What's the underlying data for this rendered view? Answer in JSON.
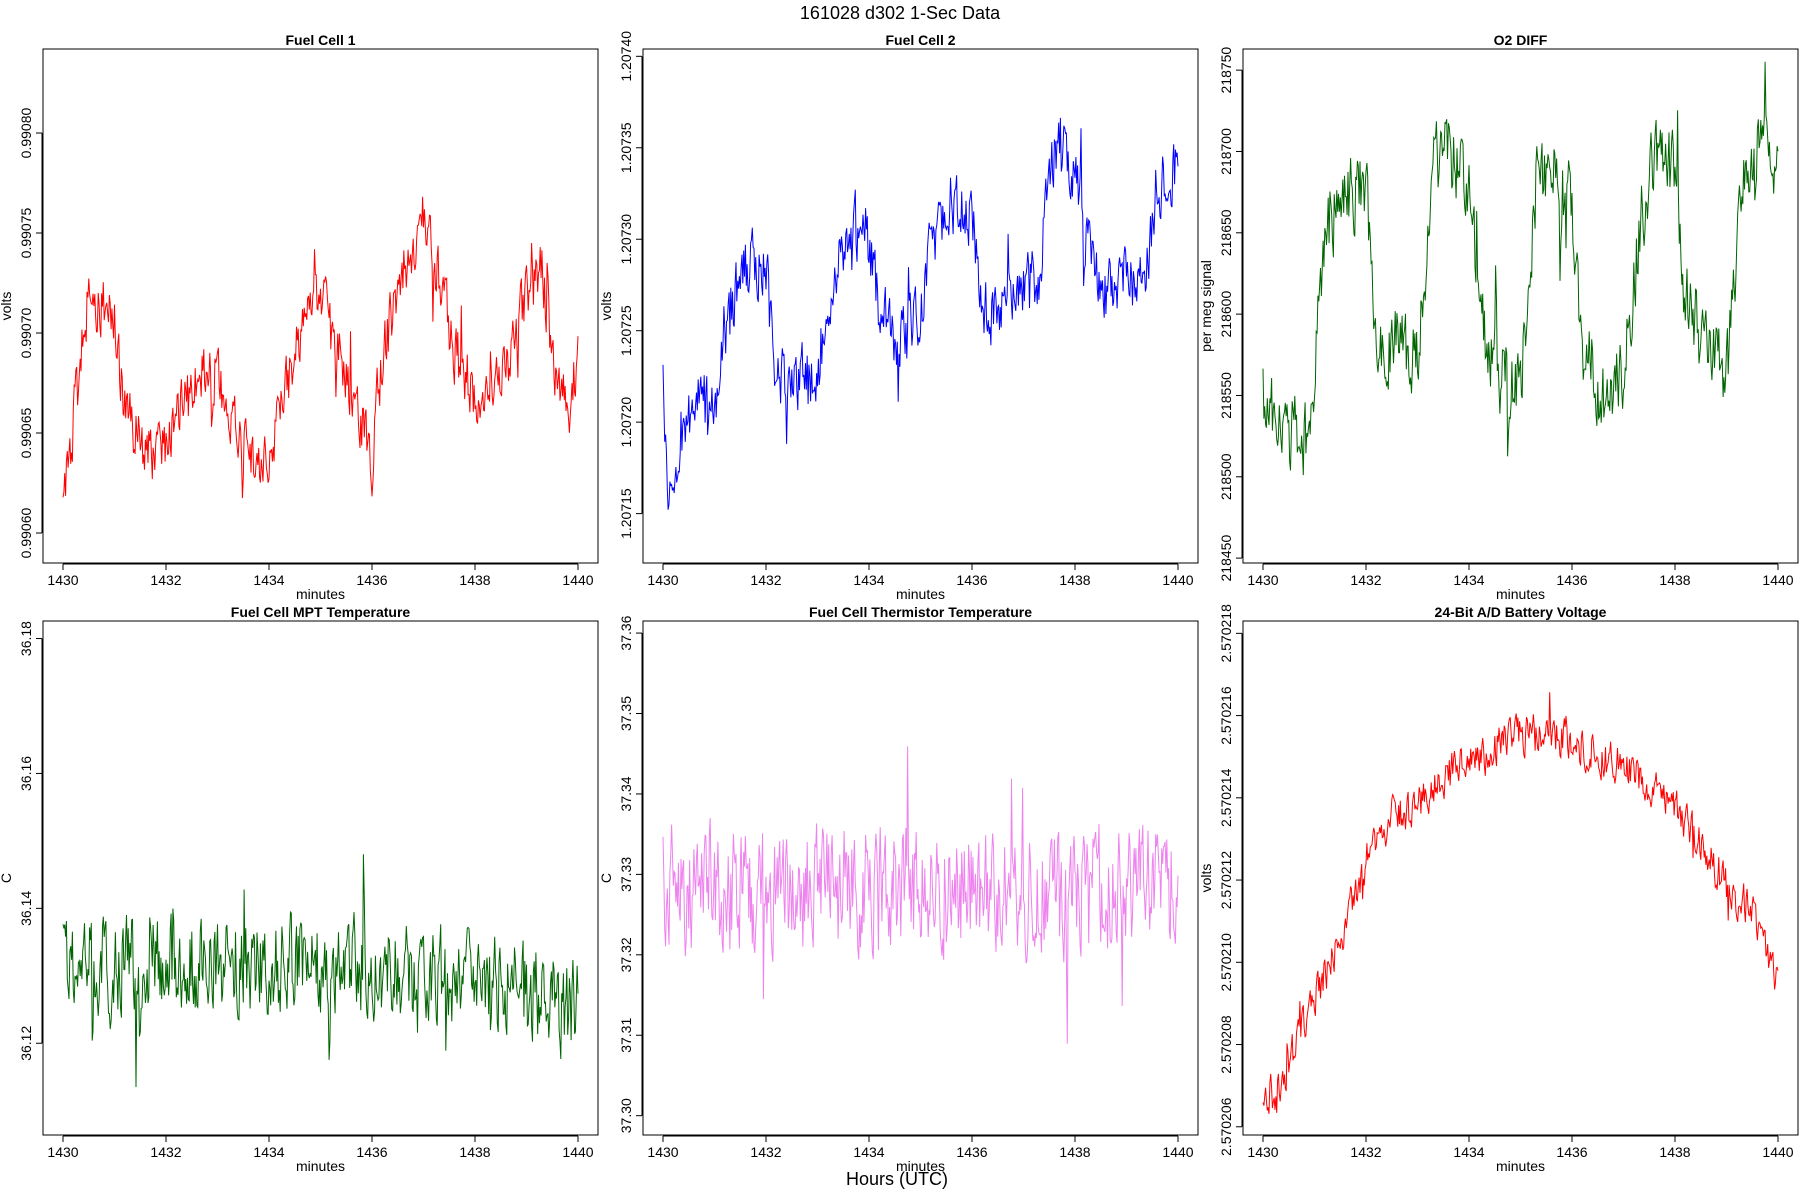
{
  "figure": {
    "title": "161028   d302   1-Sec Data",
    "bottom_label": "Hours (UTC)"
  },
  "chart_data": [
    {
      "type": "line",
      "title": "Fuel Cell 1",
      "xlabel": "minutes",
      "ylabel": "volts",
      "color": "#ff0000",
      "xlim": [
        1430,
        1440
      ],
      "ylim": [
        0.990585,
        0.990842
      ],
      "xticks": [
        1430,
        1432,
        1434,
        1436,
        1438,
        1440
      ],
      "xtick_labels": [
        "1430",
        "1432",
        "1434",
        "1436",
        "1438",
        "1440"
      ],
      "yticks": [
        0.9906,
        0.99065,
        0.9907,
        0.99075,
        0.9908
      ],
      "ytick_labels": [
        "0.99060",
        "0.99065",
        "0.99070",
        "0.99075",
        "0.99080"
      ],
      "series": [
        {
          "x": [
            1430,
            1430.5,
            1431,
            1431.2,
            1431.6,
            1432,
            1432.2,
            1432.6,
            1433,
            1433.2,
            1433.6,
            1434,
            1434.2,
            1434.6,
            1435,
            1435.2,
            1435.6,
            1436,
            1436.2,
            1436.6,
            1437,
            1437.3,
            1437.6,
            1438,
            1438.3,
            1438.6,
            1439,
            1439.3,
            1439.5,
            1439.8,
            1440
          ],
          "y": [
            0.99061,
            0.99072,
            0.99071,
            0.99066,
            0.99064,
            0.99064,
            0.99066,
            0.99068,
            0.99068,
            0.99066,
            0.99064,
            0.99063,
            0.99066,
            0.9907,
            0.99072,
            0.9907,
            0.99067,
            0.99064,
            0.99069,
            0.99073,
            0.99076,
            0.99073,
            0.99069,
            0.99067,
            0.99067,
            0.99068,
            0.99072,
            0.99073,
            0.99069,
            0.99066,
            0.99069
          ],
          "noise": 1.8e-05
        }
      ]
    },
    {
      "type": "line",
      "title": "Fuel Cell 2",
      "xlabel": "minutes",
      "ylabel": "volts",
      "color": "#0000ff",
      "xlim": [
        1430,
        1440
      ],
      "ylim": [
        1.207123,
        1.207404
      ],
      "xticks": [
        1430,
        1432,
        1434,
        1436,
        1438,
        1440
      ],
      "xtick_labels": [
        "1430",
        "1432",
        "1434",
        "1436",
        "1438",
        "1440"
      ],
      "yticks": [
        1.20715,
        1.2072,
        1.20725,
        1.2073,
        1.20735,
        1.2074
      ],
      "ytick_labels": [
        "1.20715",
        "1.20720",
        "1.20725",
        "1.20730",
        "1.20735",
        "1.20740"
      ],
      "series": [
        {
          "x": [
            1430,
            1430.1,
            1430.3,
            1430.6,
            1431,
            1431.2,
            1431.6,
            1432,
            1432.2,
            1432.6,
            1433,
            1433.2,
            1433.6,
            1434,
            1434.2,
            1434.6,
            1435,
            1435.2,
            1435.6,
            1436,
            1436.2,
            1436.6,
            1437,
            1437.3,
            1437.6,
            1438,
            1438.3,
            1438.6,
            1439,
            1439.3,
            1439.6,
            1440
          ],
          "y": [
            1.20722,
            1.20716,
            1.20719,
            1.20721,
            1.20721,
            1.20725,
            1.20729,
            1.20728,
            1.20723,
            1.20722,
            1.20723,
            1.20726,
            1.20731,
            1.2073,
            1.20726,
            1.20724,
            1.20726,
            1.2073,
            1.20732,
            1.20731,
            1.20726,
            1.20726,
            1.20727,
            1.20728,
            1.20735,
            1.20734,
            1.20729,
            1.20727,
            1.20728,
            1.20727,
            1.20733,
            1.20734
          ],
          "noise": 2.2e-05
        }
      ]
    },
    {
      "type": "line",
      "title": "O2 DIFF",
      "xlabel": "minutes",
      "ylabel": "per meg signal",
      "color": "#006400",
      "xlim": [
        1430,
        1440
      ],
      "ylim": [
        218447,
        218763
      ],
      "xticks": [
        1430,
        1432,
        1434,
        1436,
        1438,
        1440
      ],
      "xtick_labels": [
        "1430",
        "1432",
        "1434",
        "1436",
        "1438",
        "1440"
      ],
      "yticks": [
        218450,
        218500,
        218550,
        218600,
        218650,
        218700,
        218750
      ],
      "ytick_labels": [
        "218450",
        "218500",
        "218550",
        "218600",
        "218650",
        "218700",
        "218750"
      ],
      "series": [
        {
          "x": [
            1430,
            1430.4,
            1430.9,
            1431.2,
            1431.5,
            1432,
            1432.2,
            1432.6,
            1433,
            1433.3,
            1433.6,
            1434,
            1434.2,
            1434.6,
            1435,
            1435.3,
            1435.6,
            1436,
            1436.2,
            1436.6,
            1437,
            1437.3,
            1437.6,
            1438,
            1438.2,
            1438.6,
            1439,
            1439.3,
            1439.6,
            1440
          ],
          "y": [
            218550,
            218530,
            218520,
            218650,
            218670,
            218680,
            218580,
            218580,
            218570,
            218690,
            218700,
            218680,
            218600,
            218560,
            218560,
            218680,
            218690,
            218670,
            218580,
            218550,
            218560,
            218650,
            218700,
            218690,
            218610,
            218580,
            218560,
            218680,
            218700,
            218690
          ],
          "noise": 28
        }
      ]
    },
    {
      "type": "line",
      "title": "Fuel Cell MPT Temperature",
      "xlabel": "minutes",
      "ylabel": "C",
      "color": "#006400",
      "xlim": [
        1430,
        1440
      ],
      "ylim": [
        36.1064,
        36.1826
      ],
      "xticks": [
        1430,
        1432,
        1434,
        1436,
        1438,
        1440
      ],
      "xtick_labels": [
        "1430",
        "1432",
        "1434",
        "1436",
        "1438",
        "1440"
      ],
      "yticks": [
        36.12,
        36.14,
        36.16,
        36.18
      ],
      "ytick_labels": [
        "36.12",
        "36.14",
        "36.16",
        "36.18"
      ],
      "series": [
        {
          "x": [
            1430,
            1432,
            1434,
            1436,
            1438,
            1440
          ],
          "y": [
            36.132,
            36.132,
            36.132,
            36.131,
            36.13,
            36.125
          ],
          "noise": 0.0085
        }
      ]
    },
    {
      "type": "line",
      "title": "Fuel Cell Thermistor Temperature",
      "xlabel": "minutes",
      "ylabel": "C",
      "color": "#ee82ee",
      "xlim": [
        1430,
        1440
      ],
      "ylim": [
        37.2976,
        37.3615
      ],
      "xticks": [
        1430,
        1432,
        1434,
        1436,
        1438,
        1440
      ],
      "xtick_labels": [
        "1430",
        "1432",
        "1434",
        "1436",
        "1438",
        "1440"
      ],
      "yticks": [
        37.3,
        37.31,
        37.32,
        37.33,
        37.34,
        37.35,
        37.36
      ],
      "ytick_labels": [
        "37.30",
        "37.31",
        "37.32",
        "37.33",
        "37.34",
        "37.35",
        "37.36"
      ],
      "series": [
        {
          "x": [
            1430,
            1432,
            1434,
            1436,
            1438,
            1440
          ],
          "y": [
            37.328,
            37.328,
            37.329,
            37.328,
            37.328,
            37.329
          ],
          "noise": 0.009
        }
      ]
    },
    {
      "type": "line",
      "title": "24-Bit A/D Battery Voltage",
      "xlabel": "minutes",
      "ylabel": "volts",
      "color": "#ff0000",
      "xlim": [
        1430,
        1440
      ],
      "ylim": [
        2.5702058,
        2.5702183
      ],
      "xticks": [
        1430,
        1432,
        1434,
        1436,
        1438,
        1440
      ],
      "xtick_labels": [
        "1430",
        "1432",
        "1434",
        "1436",
        "1438",
        "1440"
      ],
      "yticks": [
        2.570206,
        2.570208,
        2.57021,
        2.570212,
        2.570214,
        2.570216,
        2.570218
      ],
      "ytick_labels": [
        "2.570206",
        "2.570208",
        "2.570210",
        "2.570212",
        "2.570214",
        "2.570216",
        "2.570218"
      ],
      "series": [
        {
          "x": [
            1430,
            1430.3,
            1430.7,
            1431,
            1431.5,
            1432,
            1432.5,
            1433,
            1433.5,
            1434,
            1434.5,
            1435,
            1435.5,
            1436,
            1436.5,
            1437,
            1437.5,
            1438,
            1438.5,
            1439,
            1439.5,
            1439.9
          ],
          "y": [
            2.570207,
            2.5702068,
            2.5702082,
            2.5702092,
            2.5702105,
            2.5702125,
            2.5702135,
            2.5702138,
            2.5702145,
            2.5702148,
            2.5702152,
            2.5702155,
            2.5702155,
            2.5702155,
            2.570215,
            2.5702148,
            2.5702142,
            2.5702138,
            2.570213,
            2.5702118,
            2.5702112,
            2.5702098
          ],
          "noise": 6e-07
        }
      ]
    }
  ]
}
